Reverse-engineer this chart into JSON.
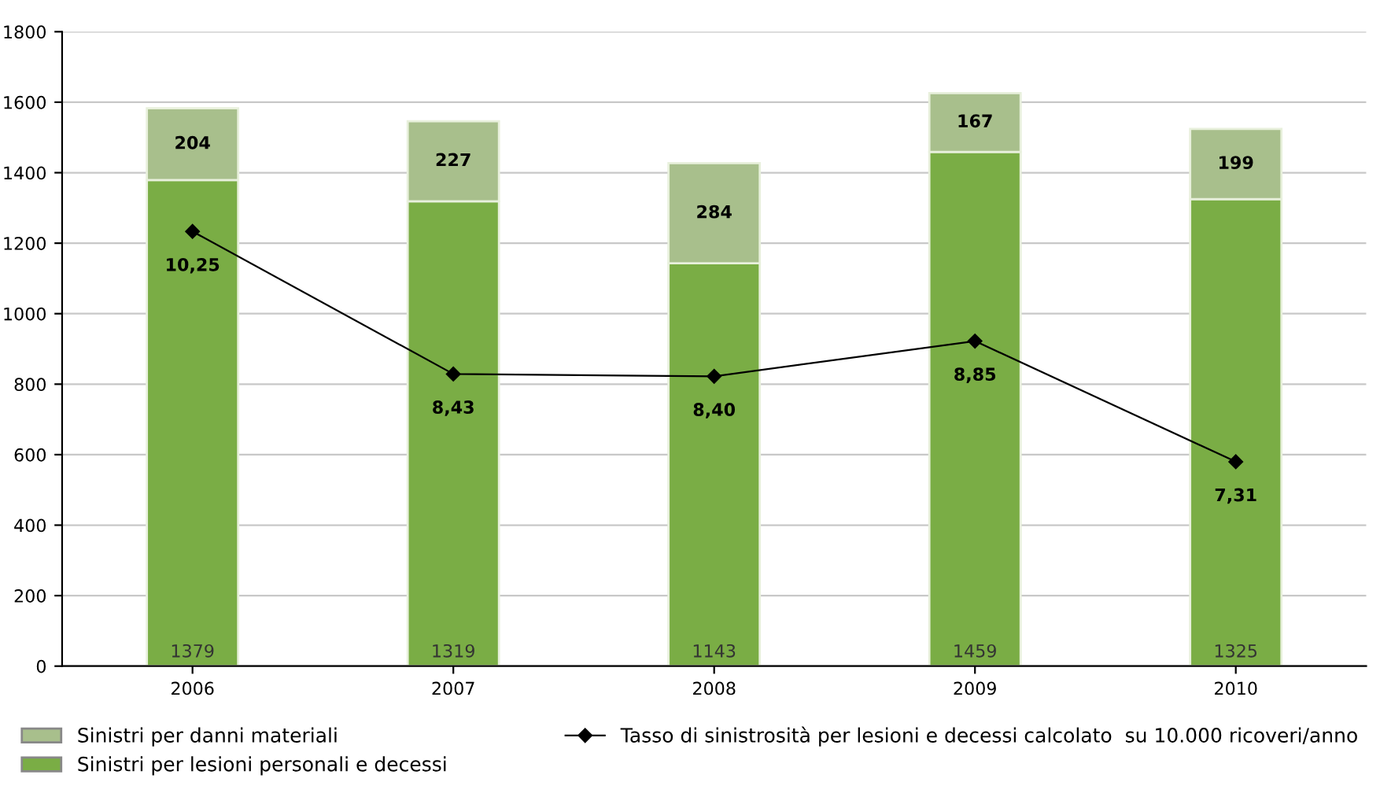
{
  "chart_data": {
    "type": "bar",
    "stacked": true,
    "categories": [
      "2006",
      "2007",
      "2008",
      "2009",
      "2010"
    ],
    "series": [
      {
        "name": "Sinistri per lesioni personali e decessi",
        "color": "#7aad45",
        "values": [
          1379,
          1319,
          1143,
          1459,
          1325
        ],
        "value_labels": [
          "1379",
          "1319",
          "1143",
          "1459",
          "1325"
        ]
      },
      {
        "name": "Sinistri per danni materiali",
        "color": "#a8bf8c",
        "values": [
          204,
          227,
          284,
          167,
          199
        ],
        "value_labels": [
          "204",
          "227",
          "284",
          "167",
          "199"
        ]
      },
      {
        "name": "Tasso di sinistrosità per lesioni e decessi calcolato  su 10.000 ricoveri/anno",
        "type": "line",
        "axis": "y2",
        "color": "#000000",
        "marker": "diamond",
        "values": [
          10.25,
          8.43,
          8.4,
          8.85,
          7.31
        ],
        "value_labels": [
          "10,25",
          "8,43",
          "8,40",
          "8,85",
          "7,31"
        ]
      }
    ],
    "ylim": [
      0,
      1800
    ],
    "yticks": [
      0,
      200,
      400,
      600,
      800,
      1000,
      1200,
      1400,
      1600,
      1800
    ],
    "y2lim": [
      4.7,
      12.8
    ],
    "grid": "y",
    "legend": "bottom"
  }
}
